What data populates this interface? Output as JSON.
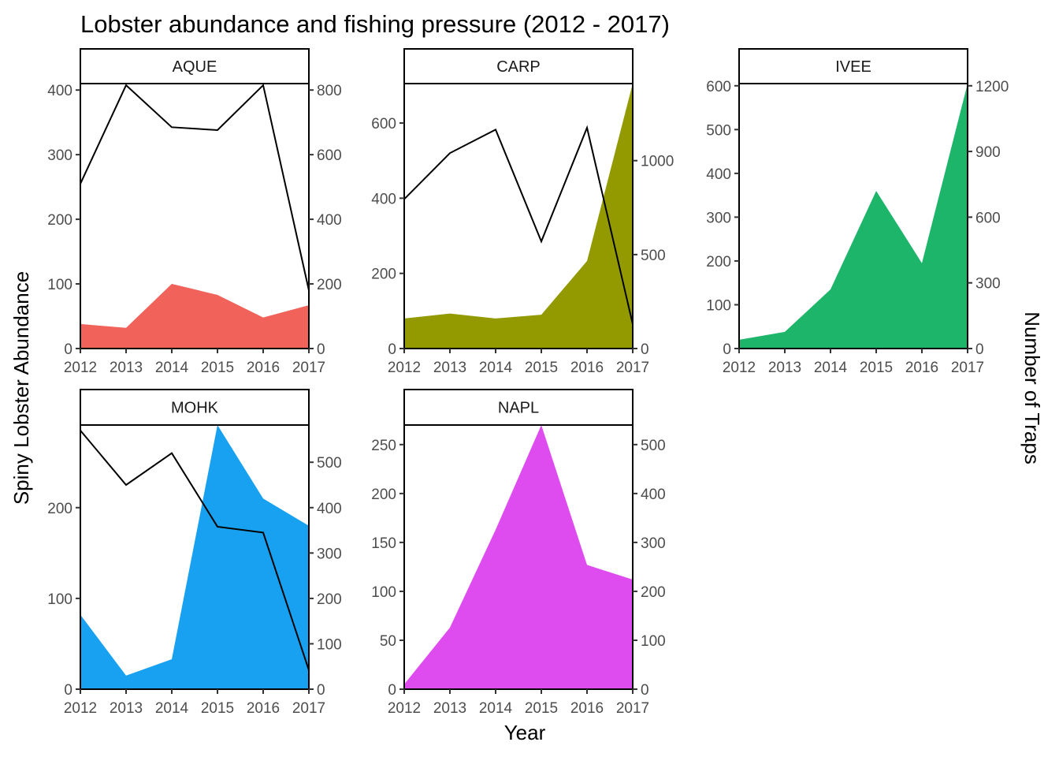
{
  "chart_data": {
    "type": "area",
    "title": "Lobster abundance and fishing pressure (2012 - 2017)",
    "xlabel": "Year",
    "ylabel": "Spiny Lobster Abundance",
    "y2label": "Number of Traps",
    "years": [
      "2012",
      "2013",
      "2014",
      "2015",
      "2016",
      "2017"
    ],
    "panels": [
      {
        "site": "AQUE",
        "color": "#F0625A",
        "abundance": [
          38,
          32,
          100,
          83,
          48,
          67
        ],
        "traps": [
          510,
          815,
          685,
          676,
          815,
          180
        ],
        "ylim": [
          0,
          410
        ],
        "y_ticks": [
          0,
          100,
          200,
          300,
          400
        ],
        "y2lim": [
          0,
          820
        ],
        "y2_ticks": [
          0,
          200,
          400,
          600,
          800
        ]
      },
      {
        "site": "CARP",
        "color": "#929A00",
        "abundance": [
          80,
          93,
          80,
          90,
          233,
          705
        ],
        "traps": [
          795,
          1040,
          1165,
          570,
          1175,
          130
        ],
        "ylim": [
          0,
          705
        ],
        "y_ticks": [
          0,
          200,
          400,
          600
        ],
        "y2lim": [
          0,
          1410
        ],
        "y2_ticks": [
          0,
          500,
          1000
        ]
      },
      {
        "site": "IVEE",
        "color": "#1DB56A",
        "abundance": [
          20,
          38,
          135,
          360,
          195,
          605
        ],
        "traps": [
          0,
          0,
          0,
          0,
          0,
          0
        ],
        "ylim": [
          0,
          605
        ],
        "y_ticks": [
          0,
          100,
          200,
          300,
          400,
          500,
          600
        ],
        "y2lim": [
          0,
          1210
        ],
        "y2_ticks": [
          0,
          300,
          600,
          900,
          1200
        ]
      },
      {
        "site": "MOHK",
        "color": "#18A1F0",
        "abundance": [
          82,
          15,
          33,
          291,
          210,
          180
        ],
        "traps": [
          570,
          450,
          520,
          358,
          345,
          42
        ],
        "ylim": [
          0,
          291
        ],
        "y_ticks": [
          0,
          100,
          200
        ],
        "y2lim": [
          0,
          582
        ],
        "y2_ticks": [
          0,
          100,
          200,
          300,
          400,
          500
        ]
      },
      {
        "site": "NAPL",
        "color": "#DE4CF0",
        "abundance": [
          5,
          63,
          163,
          270,
          127,
          112
        ],
        "traps": [
          0,
          0,
          0,
          0,
          0,
          0
        ],
        "ylim": [
          0,
          270
        ],
        "y_ticks": [
          0,
          50,
          100,
          150,
          200,
          250
        ],
        "y2lim": [
          0,
          540
        ],
        "y2_ticks": [
          0,
          100,
          200,
          300,
          400,
          500
        ]
      }
    ]
  }
}
